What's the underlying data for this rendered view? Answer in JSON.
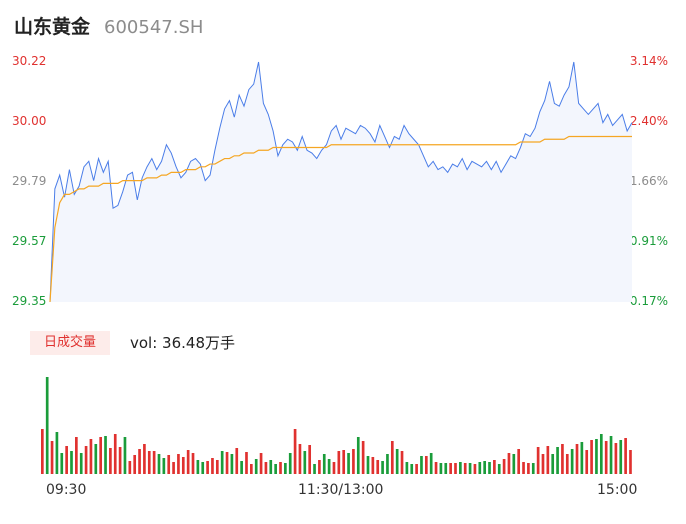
{
  "header": {
    "name": "山东黄金",
    "code": "600547.SH"
  },
  "colors": {
    "up": "#e0312f",
    "down": "#1a9c3a",
    "neutral": "#8c8c8c",
    "price_line": "#4a7de8",
    "avg_line": "#f5a623",
    "area_fill": "#f3f6fd"
  },
  "volume": {
    "badge": "日成交量",
    "text": "vol: 36.48万手"
  },
  "chart_data": [
    {
      "type": "line",
      "title": "",
      "y_left_ticks": [
        "30.22",
        "30.00",
        "29.79",
        "29.57",
        "29.35"
      ],
      "y_right_ticks": [
        "3.14%",
        "2.40%",
        "1.66%",
        "0.91%",
        "0.17%"
      ],
      "ylim": [
        29.35,
        30.22
      ],
      "x_ticks": [
        "09:30",
        "11:30/13:00",
        "15:00"
      ],
      "x_points": 121,
      "series": [
        {
          "key": "price",
          "values": [
            29.35,
            29.76,
            29.81,
            29.73,
            29.83,
            29.74,
            29.77,
            29.84,
            29.86,
            29.79,
            29.87,
            29.82,
            29.86,
            29.69,
            29.7,
            29.75,
            29.81,
            29.82,
            29.72,
            29.8,
            29.84,
            29.87,
            29.83,
            29.86,
            29.92,
            29.89,
            29.84,
            29.8,
            29.82,
            29.86,
            29.87,
            29.85,
            29.79,
            29.81,
            29.9,
            29.98,
            30.05,
            30.08,
            30.02,
            30.1,
            30.06,
            30.12,
            30.14,
            30.22,
            30.07,
            30.03,
            29.97,
            29.88,
            29.92,
            29.94,
            29.93,
            29.9,
            29.95,
            29.9,
            29.89,
            29.87,
            29.9,
            29.92,
            29.97,
            29.99,
            29.94,
            29.98,
            29.97,
            29.96,
            29.99,
            29.98,
            29.96,
            29.93,
            29.99,
            29.95,
            29.91,
            29.95,
            29.94,
            29.99,
            29.96,
            29.94,
            29.92,
            29.88,
            29.84,
            29.86,
            29.83,
            29.84,
            29.82,
            29.85,
            29.84,
            29.87,
            29.83,
            29.86,
            29.85,
            29.84,
            29.86,
            29.83,
            29.86,
            29.82,
            29.85,
            29.88,
            29.87,
            29.91,
            29.96,
            29.95,
            29.98,
            30.04,
            30.08,
            30.15,
            30.07,
            30.06,
            30.1,
            30.13,
            30.22,
            30.07,
            30.05,
            30.03,
            30.05,
            30.07,
            30.0,
            30.03,
            29.99,
            30.01,
            30.03,
            29.97,
            30.0
          ]
        },
        {
          "key": "avg",
          "values": [
            29.35,
            29.62,
            29.71,
            29.74,
            29.74,
            29.75,
            29.76,
            29.76,
            29.77,
            29.77,
            29.77,
            29.78,
            29.78,
            29.78,
            29.78,
            29.79,
            29.79,
            29.79,
            29.79,
            29.79,
            29.8,
            29.8,
            29.8,
            29.81,
            29.81,
            29.82,
            29.82,
            29.82,
            29.83,
            29.83,
            29.83,
            29.84,
            29.84,
            29.85,
            29.85,
            29.86,
            29.87,
            29.87,
            29.88,
            29.88,
            29.89,
            29.89,
            29.89,
            29.9,
            29.9,
            29.9,
            29.91,
            29.91,
            29.91,
            29.91,
            29.91,
            29.91,
            29.91,
            29.91,
            29.91,
            29.91,
            29.91,
            29.91,
            29.92,
            29.92,
            29.92,
            29.92,
            29.92,
            29.92,
            29.92,
            29.92,
            29.92,
            29.92,
            29.92,
            29.92,
            29.92,
            29.92,
            29.92,
            29.92,
            29.92,
            29.92,
            29.92,
            29.92,
            29.92,
            29.92,
            29.92,
            29.92,
            29.92,
            29.92,
            29.92,
            29.92,
            29.92,
            29.92,
            29.92,
            29.92,
            29.92,
            29.92,
            29.92,
            29.92,
            29.92,
            29.92,
            29.92,
            29.93,
            29.93,
            29.93,
            29.93,
            29.93,
            29.94,
            29.94,
            29.94,
            29.94,
            29.94,
            29.95,
            29.95,
            29.95,
            29.95,
            29.95,
            29.95,
            29.95,
            29.95,
            29.95,
            29.95,
            29.95,
            29.95,
            29.95,
            29.95
          ]
        }
      ]
    },
    {
      "type": "bar",
      "title": "",
      "ylim": [
        0,
        100
      ],
      "values": [
        45,
        97,
        33,
        42,
        21,
        28,
        23,
        37,
        21,
        28,
        35,
        30,
        37,
        38,
        26,
        40,
        27,
        37,
        13,
        19,
        25,
        30,
        23,
        23,
        20,
        16,
        19,
        12,
        20,
        17,
        24,
        21,
        14,
        12,
        13,
        16,
        14,
        23,
        22,
        20,
        26,
        13,
        22,
        10,
        15,
        21,
        12,
        14,
        10,
        12,
        11,
        21,
        45,
        30,
        23,
        29,
        10,
        14,
        20,
        15,
        12,
        23,
        24,
        21,
        25,
        37,
        33,
        18,
        17,
        14,
        13,
        20,
        33,
        25,
        23,
        12,
        10,
        10,
        18,
        18,
        21,
        12,
        11,
        11,
        11,
        11,
        12,
        11,
        11,
        10,
        12,
        13,
        12,
        14,
        10,
        15,
        21,
        20,
        25,
        12,
        11,
        11,
        27,
        20,
        28,
        20,
        27,
        30,
        20,
        25,
        30,
        32,
        24,
        34,
        35,
        40,
        33,
        38,
        31,
        34,
        36,
        24
      ],
      "colors": [
        "up",
        "down",
        "up",
        "down",
        "down",
        "up",
        "down",
        "up",
        "down",
        "up",
        "up",
        "down",
        "up",
        "down",
        "up",
        "up",
        "up",
        "down",
        "up",
        "up",
        "up",
        "up",
        "up",
        "up",
        "down",
        "down",
        "up",
        "up",
        "up",
        "up",
        "up",
        "up",
        "down",
        "down",
        "up",
        "up",
        "up",
        "down",
        "up",
        "down",
        "up",
        "down",
        "up",
        "up",
        "down",
        "up",
        "up",
        "down",
        "down",
        "up",
        "down",
        "down",
        "up",
        "up",
        "down",
        "up",
        "down",
        "up",
        "down",
        "down",
        "up",
        "up",
        "up",
        "down",
        "up",
        "down",
        "up",
        "down",
        "up",
        "up",
        "down",
        "down",
        "up",
        "down",
        "up",
        "down",
        "down",
        "up",
        "down",
        "up",
        "down",
        "up",
        "down",
        "down",
        "up",
        "up",
        "down",
        "up",
        "down",
        "up",
        "down",
        "down",
        "down",
        "up",
        "down",
        "up",
        "up",
        "down",
        "up",
        "up",
        "up",
        "down",
        "up",
        "up",
        "up",
        "down",
        "down",
        "up",
        "up",
        "down",
        "up",
        "down",
        "up",
        "up",
        "down",
        "down",
        "up",
        "down",
        "up",
        "down",
        "up",
        "up"
      ]
    }
  ]
}
